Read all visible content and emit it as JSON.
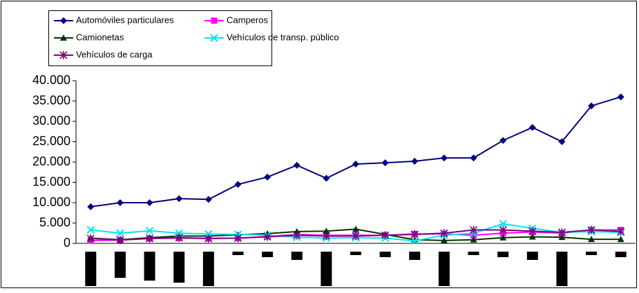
{
  "chart_data": {
    "type": "line",
    "categories": [
      null,
      null,
      null,
      null,
      null,
      null,
      null,
      null,
      null,
      null,
      null,
      null,
      null,
      null,
      null,
      null,
      null,
      null,
      null
    ],
    "series": [
      {
        "name": "Automóviles particulares",
        "color": "#000080",
        "marker": "diamond",
        "values": [
          9000,
          10000,
          10000,
          11000,
          10800,
          14500,
          16300,
          19200,
          16000,
          19500,
          19800,
          20200,
          21000,
          21000,
          25300,
          28500,
          25000,
          33800,
          36000
        ]
      },
      {
        "name": "Camperos",
        "color": "#ff00ff",
        "marker": "square",
        "values": [
          700,
          800,
          1200,
          1300,
          1200,
          1300,
          1700,
          2200,
          2000,
          2000,
          2000,
          2300,
          2300,
          2000,
          2500,
          2800,
          2500,
          3300,
          3300
        ]
      },
      {
        "name": "Camionetas",
        "color": "#003300",
        "marker": "triangle",
        "values": [
          1300,
          900,
          1400,
          1800,
          1800,
          2100,
          2400,
          2900,
          3000,
          3500,
          2200,
          900,
          700,
          900,
          1400,
          1600,
          1500,
          1000,
          1000
        ]
      },
      {
        "name": "Vehículos de transp. público",
        "color": "#00e5ee",
        "marker": "x",
        "values": [
          3300,
          2500,
          3100,
          2500,
          2300,
          2200,
          2000,
          1500,
          1300,
          1400,
          1300,
          600,
          2000,
          2500,
          4800,
          3700,
          2700,
          2900,
          2700
        ]
      },
      {
        "name": "Vehículos de carga",
        "color": "#800080",
        "marker": "star",
        "values": [
          1200,
          800,
          1200,
          1400,
          1200,
          1300,
          1600,
          2000,
          1800,
          1800,
          2000,
          2200,
          2500,
          3300,
          3300,
          3000,
          2700,
          3300,
          2900
        ]
      }
    ],
    "ylim": [
      0,
      40000
    ],
    "yticks": [
      0,
      {
        "value": 5000,
        "label": "5.000"
      },
      {
        "value": 10000,
        "label": "10.000"
      },
      {
        "value": 15000,
        "label": "15.000"
      },
      {
        "value": 20000,
        "label": "20.000"
      },
      {
        "value": 25000,
        "label": "25.000"
      },
      {
        "value": 30000,
        "label": "30.000"
      },
      {
        "value": 35000,
        "label": "35.000"
      },
      {
        "value": 40000,
        "label": "40.000"
      }
    ]
  }
}
